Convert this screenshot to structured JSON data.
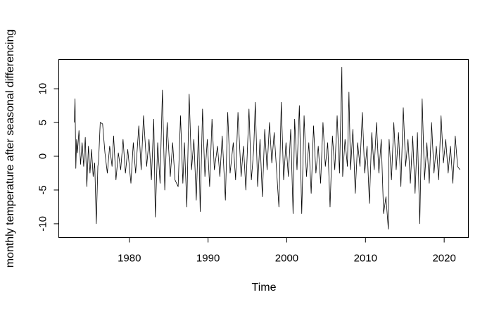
{
  "chart_data": {
    "type": "line",
    "title": "",
    "xlabel": "Time",
    "ylabel": "monthly temperature after seasonal differencing",
    "xlim": [
      1973,
      2022
    ],
    "ylim": [
      -11,
      13.5
    ],
    "xticks": [
      1980,
      1990,
      2000,
      2010,
      2020
    ],
    "yticks": [
      -10,
      -5,
      0,
      5,
      10
    ],
    "grid": false,
    "legend": "none",
    "line_color": "#000000",
    "series": [
      {
        "sampling": "monthly",
        "x": [
          1973.0,
          1973.1,
          1973.2,
          1973.3,
          1973.4,
          1973.6,
          1973.8,
          1974.0,
          1974.2,
          1974.4,
          1974.6,
          1974.8,
          1975.0,
          1975.2,
          1975.4,
          1975.6,
          1975.8,
          1976.0,
          1976.1,
          1976.3,
          1976.6,
          1976.9,
          1977.2,
          1977.5,
          1977.8,
          1978.0,
          1978.3,
          1978.6,
          1978.9,
          1979.2,
          1979.5,
          1979.8,
          1980.2,
          1980.5,
          1980.8,
          1981.2,
          1981.5,
          1981.8,
          1982.2,
          1982.5,
          1982.8,
          1983.1,
          1983.3,
          1983.6,
          1983.9,
          1984.2,
          1984.5,
          1984.8,
          1985.2,
          1985.5,
          1985.8,
          1986.2,
          1986.5,
          1986.8,
          1987.0,
          1987.3,
          1987.6,
          1987.9,
          1988.2,
          1988.5,
          1988.8,
          1989.0,
          1989.3,
          1989.6,
          1989.9,
          1990.2,
          1990.5,
          1990.8,
          1991.2,
          1991.5,
          1991.8,
          1992.2,
          1992.5,
          1992.8,
          1993.2,
          1993.5,
          1993.8,
          1994.2,
          1994.5,
          1994.8,
          1995.2,
          1995.5,
          1995.8,
          1996.0,
          1996.3,
          1996.6,
          1996.9,
          1997.2,
          1997.5,
          1997.8,
          1998.1,
          1998.4,
          1998.7,
          1999.0,
          1999.3,
          1999.6,
          1999.9,
          2000.2,
          2000.5,
          2000.8,
          2001.0,
          2001.3,
          2001.6,
          2001.9,
          2002.2,
          2002.5,
          2002.8,
          2003.1,
          2003.4,
          2003.7,
          2004.0,
          2004.3,
          2004.6,
          2004.9,
          2005.2,
          2005.5,
          2005.8,
          2006.1,
          2006.4,
          2006.7,
          2007.0,
          2007.1,
          2007.4,
          2007.7,
          2007.9,
          2008.1,
          2008.4,
          2008.7,
          2009.0,
          2009.3,
          2009.6,
          2009.9,
          2010.2,
          2010.5,
          2010.8,
          2011.1,
          2011.4,
          2011.7,
          2012.0,
          2012.3,
          2012.6,
          2012.9,
          2013.0,
          2013.3,
          2013.6,
          2013.9,
          2014.2,
          2014.5,
          2014.8,
          2015.1,
          2015.4,
          2015.7,
          2016.0,
          2016.3,
          2016.6,
          2016.9,
          2017.2,
          2017.5,
          2017.8,
          2018.1,
          2018.4,
          2018.7,
          2019.0,
          2019.3,
          2019.6,
          2019.9,
          2020.2,
          2020.5,
          2020.8,
          2021.1,
          2021.4,
          2021.7,
          2022.0
        ],
        "y": [
          5.0,
          8.5,
          -1.8,
          2.5,
          0.5,
          3.8,
          -1.2,
          2.0,
          -1.5,
          2.8,
          -4.5,
          1.5,
          -2.5,
          1.0,
          -3.0,
          -1.0,
          -10.0,
          -1.5,
          -0.5,
          5.0,
          4.8,
          0.5,
          -2.5,
          1.5,
          -1.5,
          3.0,
          -3.5,
          0.5,
          -2.0,
          2.5,
          -2.5,
          1.0,
          -4.0,
          2.0,
          -2.5,
          4.5,
          -2.0,
          6.0,
          -1.5,
          2.5,
          -3.5,
          5.5,
          -9.0,
          2.0,
          -4.0,
          9.8,
          -5.0,
          5.0,
          -3.0,
          2.0,
          -3.5,
          -4.5,
          6.0,
          -4.0,
          2.0,
          -7.5,
          9.2,
          -2.0,
          2.5,
          -6.5,
          4.5,
          -8.2,
          7.0,
          -3.0,
          2.5,
          -4.5,
          5.5,
          -2.0,
          1.5,
          -3.0,
          3.0,
          -6.5,
          6.5,
          -2.5,
          2.0,
          -3.5,
          6.5,
          -3.0,
          1.5,
          -5.0,
          7.0,
          -3.5,
          1.0,
          8.0,
          -4.5,
          2.5,
          -6.0,
          4.0,
          -2.0,
          5.0,
          -1.0,
          3.5,
          -2.0,
          -7.5,
          8.0,
          -3.5,
          2.0,
          -3.0,
          4.0,
          -8.5,
          5.5,
          -2.0,
          7.5,
          -8.5,
          6.0,
          -3.0,
          2.0,
          -5.5,
          4.5,
          -2.5,
          1.5,
          -4.0,
          5.0,
          -1.5,
          2.0,
          -7.5,
          3.0,
          -2.0,
          6.0,
          -2.5,
          13.2,
          -3.0,
          2.5,
          -1.5,
          9.5,
          -2.0,
          4.0,
          -5.5,
          2.0,
          -1.5,
          6.5,
          -2.5,
          1.5,
          -7.0,
          3.5,
          -2.0,
          5.0,
          -2.5,
          2.5,
          -8.5,
          -6.0,
          -10.8,
          2.5,
          -3.5,
          5.0,
          -2.0,
          3.5,
          -4.5,
          7.2,
          -1.5,
          2.5,
          -4.0,
          3.0,
          -5.5,
          3.5,
          -10.0,
          8.5,
          -3.5,
          2.0,
          -4.0,
          5.0,
          -2.5,
          1.5,
          -3.5,
          6.0,
          -1.0,
          2.5,
          -2.5,
          1.5,
          -4.0,
          3.0,
          -1.5,
          -2.0
        ]
      }
    ]
  }
}
